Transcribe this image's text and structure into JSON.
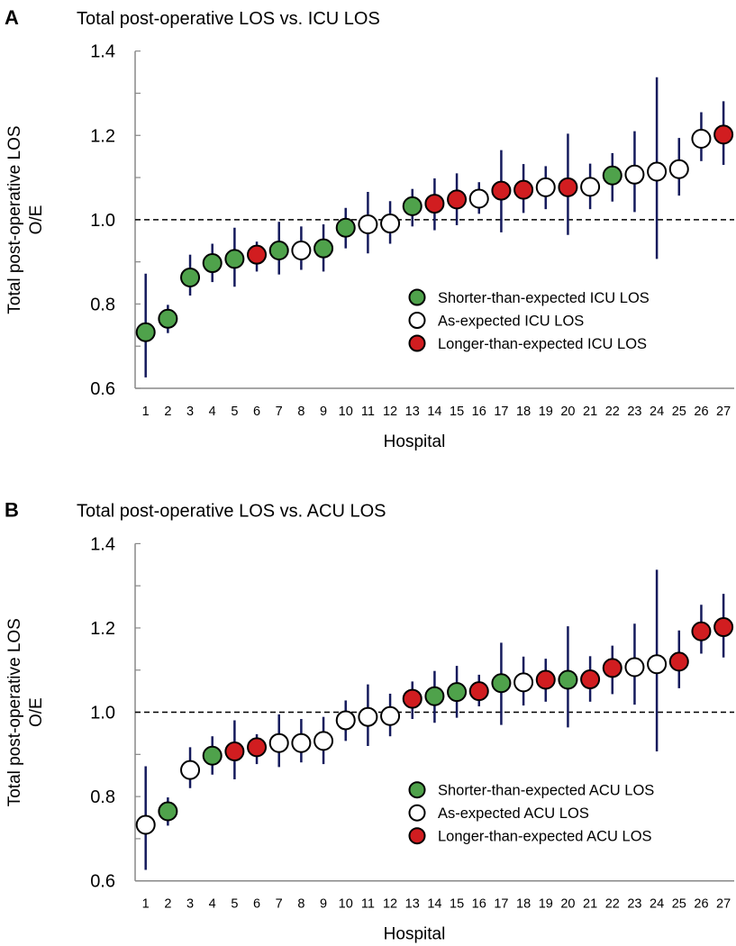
{
  "colors": {
    "shorter": "#4fa24b",
    "as_expected": "#ffffff",
    "longer": "#d11d20",
    "error_bar": "#141a5c",
    "outline": "#000000"
  },
  "chart_data": [
    {
      "panel": "A",
      "type": "scatter",
      "title": "Total post-operative LOS vs. ICU LOS",
      "xlabel": "Hospital",
      "ylabel": [
        "Total post-operative LOS",
        "O/E"
      ],
      "ylim": [
        0.6,
        1.4
      ],
      "yticks": [
        "0.6",
        "0.8",
        "1.0",
        "1.2",
        "1.4"
      ],
      "reference_line": 1.0,
      "legend": [
        {
          "key": "shorter",
          "label": "Shorter-than-expected ICU LOS"
        },
        {
          "key": "as_expected",
          "label": "As-expected ICU LOS"
        },
        {
          "key": "longer",
          "label": "Longer-than-expected ICU LOS"
        }
      ],
      "legend_position": "bottom-right",
      "x": [
        "1",
        "2",
        "3",
        "4",
        "5",
        "6",
        "7",
        "8",
        "9",
        "10",
        "11",
        "12",
        "13",
        "14",
        "15",
        "16",
        "17",
        "18",
        "19",
        "20",
        "21",
        "22",
        "23",
        "24",
        "25",
        "26",
        "27"
      ],
      "y": [
        0.733,
        0.765,
        0.863,
        0.897,
        0.907,
        0.917,
        0.927,
        0.927,
        0.932,
        0.981,
        0.989,
        0.991,
        1.032,
        1.038,
        1.048,
        1.05,
        1.069,
        1.071,
        1.077,
        1.077,
        1.078,
        1.105,
        1.107,
        1.114,
        1.12,
        1.192,
        1.202
      ],
      "lower": [
        0.626,
        0.731,
        0.82,
        0.852,
        0.841,
        0.877,
        0.87,
        0.881,
        0.877,
        0.932,
        0.92,
        0.943,
        0.984,
        0.975,
        0.987,
        1.014,
        0.97,
        1.016,
        1.025,
        0.964,
        1.025,
        1.043,
        1.018,
        0.907,
        1.057,
        1.139,
        1.13
      ],
      "upper": [
        0.872,
        0.798,
        0.917,
        0.943,
        0.981,
        0.948,
        0.995,
        0.984,
        0.989,
        1.028,
        1.066,
        1.044,
        1.073,
        1.098,
        1.11,
        1.089,
        1.165,
        1.132,
        1.127,
        1.204,
        1.133,
        1.158,
        1.21,
        1.338,
        1.194,
        1.255,
        1.281
      ],
      "category": [
        "shorter",
        "shorter",
        "shorter",
        "shorter",
        "shorter",
        "longer",
        "shorter",
        "as_expected",
        "shorter",
        "shorter",
        "as_expected",
        "as_expected",
        "shorter",
        "longer",
        "longer",
        "as_expected",
        "longer",
        "longer",
        "as_expected",
        "longer",
        "as_expected",
        "shorter",
        "as_expected",
        "as_expected",
        "as_expected",
        "as_expected",
        "longer"
      ]
    },
    {
      "panel": "B",
      "type": "scatter",
      "title": "Total post-operative LOS vs. ACU LOS",
      "xlabel": "Hospital",
      "ylabel": [
        "Total post-operative LOS",
        "O/E"
      ],
      "ylim": [
        0.6,
        1.4
      ],
      "yticks": [
        "0.6",
        "0.8",
        "1.0",
        "1.2",
        "1.4"
      ],
      "reference_line": 1.0,
      "legend": [
        {
          "key": "shorter",
          "label": "Shorter-than-expected ACU LOS"
        },
        {
          "key": "as_expected",
          "label": "As-expected ACU LOS"
        },
        {
          "key": "longer",
          "label": "Longer-than-expected ACU LOS"
        }
      ],
      "legend_position": "bottom-right",
      "x": [
        "1",
        "2",
        "3",
        "4",
        "5",
        "6",
        "7",
        "8",
        "9",
        "10",
        "11",
        "12",
        "13",
        "14",
        "15",
        "16",
        "17",
        "18",
        "19",
        "20",
        "21",
        "22",
        "23",
        "24",
        "25",
        "26",
        "27"
      ],
      "y": [
        0.733,
        0.765,
        0.863,
        0.897,
        0.907,
        0.917,
        0.927,
        0.927,
        0.932,
        0.981,
        0.989,
        0.991,
        1.032,
        1.038,
        1.048,
        1.05,
        1.069,
        1.071,
        1.077,
        1.077,
        1.078,
        1.105,
        1.107,
        1.114,
        1.12,
        1.192,
        1.202
      ],
      "lower": [
        0.626,
        0.731,
        0.82,
        0.852,
        0.841,
        0.877,
        0.87,
        0.881,
        0.877,
        0.932,
        0.92,
        0.943,
        0.984,
        0.975,
        0.987,
        1.014,
        0.97,
        1.016,
        1.025,
        0.964,
        1.025,
        1.043,
        1.018,
        0.907,
        1.057,
        1.139,
        1.13
      ],
      "upper": [
        0.872,
        0.798,
        0.917,
        0.943,
        0.981,
        0.948,
        0.995,
        0.984,
        0.989,
        1.028,
        1.066,
        1.044,
        1.073,
        1.098,
        1.11,
        1.089,
        1.165,
        1.132,
        1.127,
        1.204,
        1.133,
        1.158,
        1.21,
        1.338,
        1.194,
        1.255,
        1.281
      ],
      "category": [
        "as_expected",
        "shorter",
        "as_expected",
        "shorter",
        "longer",
        "longer",
        "as_expected",
        "as_expected",
        "as_expected",
        "as_expected",
        "as_expected",
        "as_expected",
        "longer",
        "shorter",
        "shorter",
        "longer",
        "shorter",
        "as_expected",
        "longer",
        "shorter",
        "longer",
        "longer",
        "as_expected",
        "as_expected",
        "longer",
        "longer",
        "longer"
      ]
    }
  ]
}
